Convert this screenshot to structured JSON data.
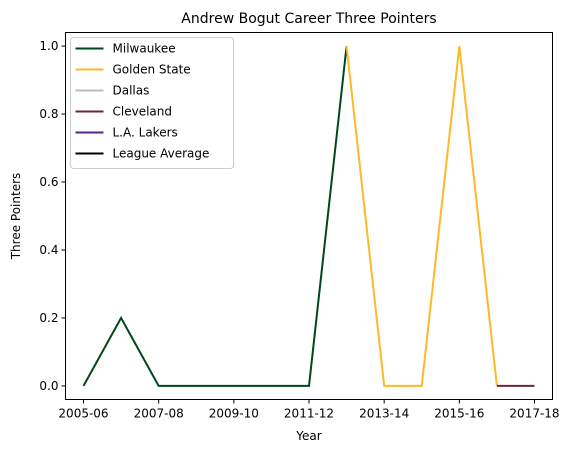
{
  "chart_data": {
    "type": "line",
    "title": "Andrew Bogut Career Three Pointers",
    "xlabel": "Year",
    "ylabel": "Three Pointers",
    "x_tick_labels": [
      "2005-06",
      "2007-08",
      "2009-10",
      "2011-12",
      "2013-14",
      "2015-16",
      "2017-18"
    ],
    "x_ticks": [
      "2005-06",
      "2007-08",
      "2009-10",
      "2011-12",
      "2013-14",
      "2015-16",
      "2017-18"
    ],
    "seasons": [
      "2005-06",
      "2006-07",
      "2007-08",
      "2008-09",
      "2009-10",
      "2010-11",
      "2011-12",
      "2012-13",
      "2013-14",
      "2014-15",
      "2015-16",
      "2016-17",
      "2017-18"
    ],
    "y_ticks": [
      0.0,
      0.2,
      0.4,
      0.6,
      0.8,
      1.0
    ],
    "y_tick_labels": [
      "0.0",
      "0.2",
      "0.4",
      "0.6",
      "0.8",
      "1.0"
    ],
    "ylim": [
      -0.04,
      1.04
    ],
    "grid": false,
    "legend_position": "top-left",
    "series": [
      {
        "name": "Milwaukee",
        "color": "#00471b",
        "points": [
          {
            "x": "2005-06",
            "y": 0.0
          },
          {
            "x": "2006-07",
            "y": 0.2
          },
          {
            "x": "2007-08",
            "y": 0.0
          },
          {
            "x": "2008-09",
            "y": 0.0
          },
          {
            "x": "2009-10",
            "y": 0.0
          },
          {
            "x": "2010-11",
            "y": 0.0
          },
          {
            "x": "2011-12",
            "y": 0.0
          },
          {
            "x": "2012-13",
            "y": 1.0
          }
        ]
      },
      {
        "name": "Golden State",
        "color": "#fdb927",
        "points": [
          {
            "x": "2012-13",
            "y": 1.0
          },
          {
            "x": "2013-14",
            "y": 0.0
          },
          {
            "x": "2014-15",
            "y": 0.0
          },
          {
            "x": "2015-16",
            "y": 1.0
          },
          {
            "x": "2016-17",
            "y": 0.0
          }
        ]
      },
      {
        "name": "Dallas",
        "color": "#bbbbbb",
        "points": []
      },
      {
        "name": "Cleveland",
        "color": "#6f263d",
        "points": [
          {
            "x": "2016-17",
            "y": 0.0
          },
          {
            "x": "2017-18",
            "y": 0.0
          }
        ]
      },
      {
        "name": "L.A. Lakers",
        "color": "#552583",
        "points": []
      },
      {
        "name": "League Average",
        "color": "#000000",
        "points": []
      }
    ]
  }
}
